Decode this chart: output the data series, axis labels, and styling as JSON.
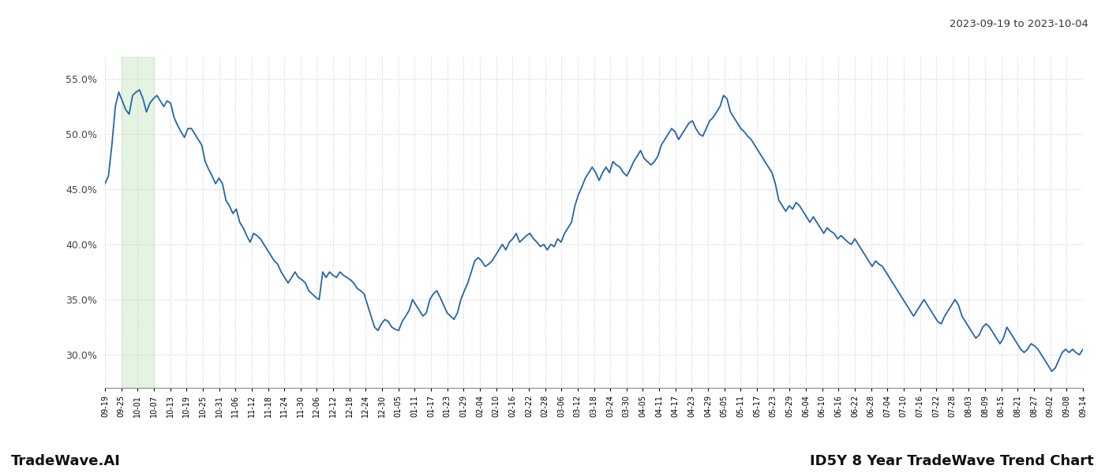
{
  "title_right": "2023-09-19 to 2023-10-04",
  "footer_left": "TradeWave.AI",
  "footer_right": "ID5Y 8 Year TradeWave Trend Chart",
  "line_color": "#2266aa",
  "line_width": 1.3,
  "background_color": "#ffffff",
  "grid_color": "#cccccc",
  "grid_linestyle": ":",
  "shaded_region_color": "#d4ecd0",
  "shaded_region_alpha": 0.6,
  "ylim": [
    27.0,
    57.0
  ],
  "yticks": [
    30.0,
    35.0,
    40.0,
    45.0,
    50.0,
    55.0
  ],
  "x_labels": [
    "09-19",
    "09-25",
    "10-01",
    "10-07",
    "10-13",
    "10-19",
    "10-25",
    "10-31",
    "11-06",
    "11-12",
    "11-18",
    "11-24",
    "11-30",
    "12-06",
    "12-12",
    "12-18",
    "12-24",
    "12-30",
    "01-05",
    "01-11",
    "01-17",
    "01-23",
    "01-29",
    "02-04",
    "02-10",
    "02-16",
    "02-22",
    "02-28",
    "03-06",
    "03-12",
    "03-18",
    "03-24",
    "03-30",
    "04-05",
    "04-11",
    "04-17",
    "04-23",
    "04-29",
    "05-05",
    "05-11",
    "05-17",
    "05-23",
    "05-29",
    "06-04",
    "06-10",
    "06-16",
    "06-22",
    "06-28",
    "07-04",
    "07-10",
    "07-16",
    "07-22",
    "07-28",
    "08-03",
    "08-09",
    "08-15",
    "08-21",
    "08-27",
    "09-02",
    "09-08",
    "09-14"
  ],
  "shaded_start_label": "09-25",
  "shaded_end_label": "10-07",
  "y_values": [
    45.5,
    46.2,
    49.0,
    52.5,
    53.8,
    53.0,
    52.2,
    51.8,
    53.5,
    53.8,
    54.0,
    53.2,
    52.0,
    52.8,
    53.2,
    53.5,
    53.0,
    52.5,
    53.0,
    52.8,
    51.5,
    50.8,
    50.2,
    49.7,
    50.5,
    50.5,
    50.0,
    49.5,
    49.0,
    47.5,
    46.8,
    46.2,
    45.5,
    46.0,
    45.5,
    44.0,
    43.5,
    42.8,
    43.2,
    42.0,
    41.5,
    40.8,
    40.2,
    41.0,
    40.8,
    40.5,
    40.0,
    39.5,
    39.0,
    38.5,
    38.2,
    37.5,
    37.0,
    36.5,
    37.0,
    37.5,
    37.0,
    36.8,
    36.5,
    35.8,
    35.5,
    35.2,
    35.0,
    37.5,
    37.0,
    37.5,
    37.2,
    37.0,
    37.5,
    37.2,
    37.0,
    36.8,
    36.5,
    36.0,
    35.8,
    35.5,
    34.5,
    33.5,
    32.5,
    32.2,
    32.8,
    33.2,
    33.0,
    32.5,
    32.3,
    32.2,
    33.0,
    33.5,
    34.0,
    35.0,
    34.5,
    34.0,
    33.5,
    33.8,
    35.0,
    35.5,
    35.8,
    35.2,
    34.5,
    33.8,
    33.5,
    33.2,
    33.8,
    35.0,
    35.8,
    36.5,
    37.5,
    38.5,
    38.8,
    38.5,
    38.0,
    38.2,
    38.5,
    39.0,
    39.5,
    40.0,
    39.5,
    40.2,
    40.5,
    41.0,
    40.2,
    40.5,
    40.8,
    41.0,
    40.5,
    40.2,
    39.8,
    40.0,
    39.5,
    40.0,
    39.8,
    40.5,
    40.2,
    41.0,
    41.5,
    42.0,
    43.5,
    44.5,
    45.2,
    46.0,
    46.5,
    47.0,
    46.5,
    45.8,
    46.5,
    47.0,
    46.5,
    47.5,
    47.2,
    47.0,
    46.5,
    46.2,
    46.8,
    47.5,
    48.0,
    48.5,
    47.8,
    47.5,
    47.2,
    47.5,
    48.0,
    49.0,
    49.5,
    50.0,
    50.5,
    50.2,
    49.5,
    50.0,
    50.5,
    51.0,
    51.2,
    50.5,
    50.0,
    49.8,
    50.5,
    51.2,
    51.5,
    52.0,
    52.5,
    53.5,
    53.2,
    52.0,
    51.5,
    51.0,
    50.5,
    50.2,
    49.8,
    49.5,
    49.0,
    48.5,
    48.0,
    47.5,
    47.0,
    46.5,
    45.5,
    44.0,
    43.5,
    43.0,
    43.5,
    43.2,
    43.8,
    43.5,
    43.0,
    42.5,
    42.0,
    42.5,
    42.0,
    41.5,
    41.0,
    41.5,
    41.2,
    41.0,
    40.5,
    40.8,
    40.5,
    40.2,
    40.0,
    40.5,
    40.0,
    39.5,
    39.0,
    38.5,
    38.0,
    38.5,
    38.2,
    38.0,
    37.5,
    37.0,
    36.5,
    36.0,
    35.5,
    35.0,
    34.5,
    34.0,
    33.5,
    34.0,
    34.5,
    35.0,
    34.5,
    34.0,
    33.5,
    33.0,
    32.8,
    33.5,
    34.0,
    34.5,
    35.0,
    34.5,
    33.5,
    33.0,
    32.5,
    32.0,
    31.5,
    31.8,
    32.5,
    32.8,
    32.5,
    32.0,
    31.5,
    31.0,
    31.5,
    32.5,
    32.0,
    31.5,
    31.0,
    30.5,
    30.2,
    30.5,
    31.0,
    30.8,
    30.5,
    30.0,
    29.5,
    29.0,
    28.5,
    28.8,
    29.5,
    30.2,
    30.5,
    30.2,
    30.5,
    30.2,
    30.0,
    30.5
  ]
}
